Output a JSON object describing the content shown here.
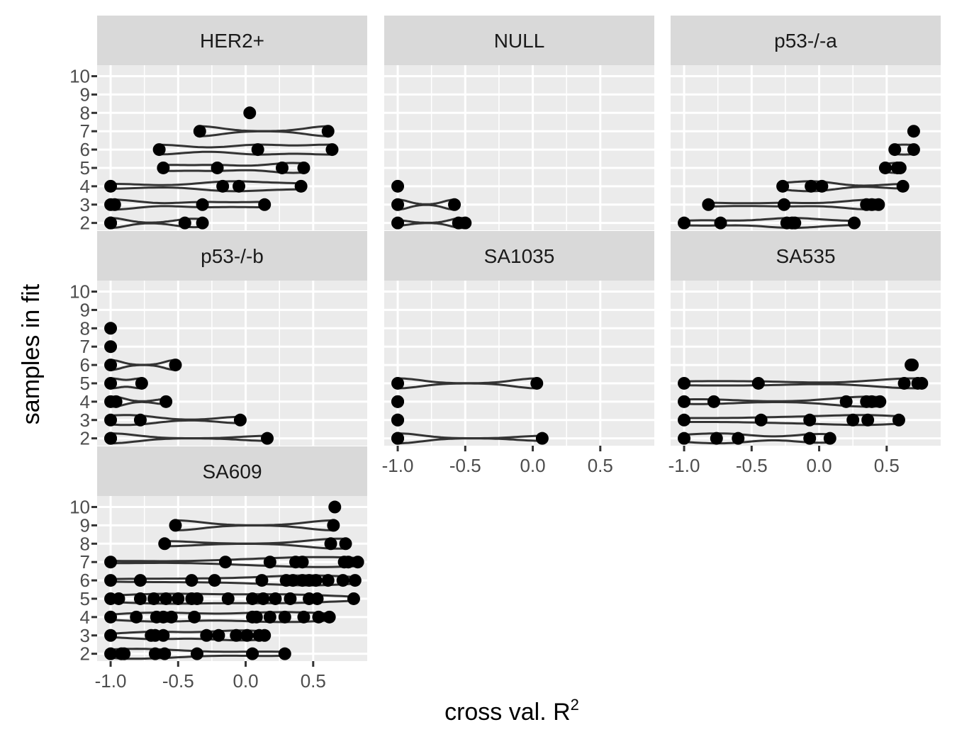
{
  "chart_data": {
    "type": "violin-scatter",
    "xlabel": "cross val. R",
    "xlabel_superscript": "2",
    "ylabel": "samples in fit",
    "xlim": [
      -1.1,
      0.9
    ],
    "ylim": [
      1.6,
      10.6
    ],
    "x_ticks": [
      -1.0,
      -0.5,
      0.0,
      0.5
    ],
    "x_tick_labels": [
      "-1.0",
      "-0.5",
      "0.0",
      "0.5"
    ],
    "y_ticks": [
      2,
      3,
      4,
      5,
      6,
      7,
      8,
      9,
      10
    ],
    "y_tick_labels": [
      "2",
      "3",
      "4",
      "5",
      "6",
      "7",
      "8",
      "9",
      "10"
    ],
    "colors": {
      "panel": "#ebebeb",
      "strip": "#d9d9d9",
      "grid": "#ffffff",
      "point": "#000000",
      "violin": "#333333"
    },
    "panels": [
      {
        "name": "HER2+",
        "groups": [
          {
            "n": 2,
            "x": [
              -1.0,
              -1.0,
              -0.45,
              -0.32
            ]
          },
          {
            "n": 3,
            "x": [
              -1.0,
              -0.97,
              -0.32,
              0.14
            ]
          },
          {
            "n": 4,
            "x": [
              -1.0,
              -0.17,
              -0.05,
              0.41
            ]
          },
          {
            "n": 5,
            "x": [
              -0.61,
              -0.21,
              0.27,
              0.43
            ]
          },
          {
            "n": 6,
            "x": [
              -0.64,
              0.09,
              0.64
            ]
          },
          {
            "n": 7,
            "x": [
              -0.34,
              0.61
            ]
          },
          {
            "n": 8,
            "x": [
              0.03
            ]
          }
        ]
      },
      {
        "name": "NULL",
        "groups": [
          {
            "n": 2,
            "x": [
              -1.0,
              -0.55,
              -0.5
            ]
          },
          {
            "n": 3,
            "x": [
              -1.0,
              -0.58
            ]
          },
          {
            "n": 4,
            "x": [
              -1.0
            ]
          }
        ]
      },
      {
        "name": "p53-/-a",
        "groups": [
          {
            "n": 2,
            "x": [
              -1.0,
              -0.73,
              -0.24,
              -0.2,
              -0.18,
              0.26
            ]
          },
          {
            "n": 3,
            "x": [
              -0.82,
              -0.26,
              0.35,
              0.39,
              0.44
            ]
          },
          {
            "n": 4,
            "x": [
              -0.27,
              -0.06,
              0.02,
              0.62
            ]
          },
          {
            "n": 5,
            "x": [
              0.49,
              0.58,
              0.6
            ]
          },
          {
            "n": 6,
            "x": [
              0.56,
              0.7
            ]
          },
          {
            "n": 7,
            "x": [
              0.7
            ]
          }
        ]
      },
      {
        "name": "p53-/-b",
        "groups": [
          {
            "n": 2,
            "x": [
              -1.0,
              -1.0,
              0.16
            ]
          },
          {
            "n": 3,
            "x": [
              -1.0,
              -0.78,
              -0.04
            ]
          },
          {
            "n": 4,
            "x": [
              -1.0,
              -0.96,
              -0.59
            ]
          },
          {
            "n": 5,
            "x": [
              -1.0,
              -0.77
            ]
          },
          {
            "n": 6,
            "x": [
              -1.0,
              -0.52
            ]
          },
          {
            "n": 7,
            "x": [
              -1.0
            ]
          },
          {
            "n": 8,
            "x": [
              -1.0
            ]
          }
        ]
      },
      {
        "name": "SA1035",
        "groups": [
          {
            "n": 2,
            "x": [
              -1.0,
              -1.0,
              0.07
            ]
          },
          {
            "n": 3,
            "x": [
              -1.0,
              -1.0
            ]
          },
          {
            "n": 4,
            "x": [
              -1.0,
              -1.0
            ]
          },
          {
            "n": 5,
            "x": [
              -1.0,
              0.03
            ]
          }
        ]
      },
      {
        "name": "SA535",
        "groups": [
          {
            "n": 2,
            "x": [
              -1.0,
              -0.76,
              -0.6,
              -0.07,
              0.08
            ]
          },
          {
            "n": 3,
            "x": [
              -1.0,
              -0.43,
              -0.07,
              0.25,
              0.36,
              0.59
            ]
          },
          {
            "n": 4,
            "x": [
              -1.0,
              -0.78,
              0.2,
              0.35,
              0.39,
              0.45
            ]
          },
          {
            "n": 5,
            "x": [
              -1.0,
              -0.45,
              0.63,
              0.73,
              0.76
            ]
          },
          {
            "n": 6,
            "x": [
              0.68,
              0.69
            ]
          }
        ]
      },
      {
        "name": "SA609",
        "groups": [
          {
            "n": 2,
            "x": [
              -1.0,
              -0.92,
              -0.9,
              -0.67,
              -0.6,
              -0.36,
              0.05,
              0.29
            ]
          },
          {
            "n": 3,
            "x": [
              -1.0,
              -0.7,
              -0.67,
              -0.61,
              -0.29,
              -0.2,
              -0.07,
              0.01,
              0.1,
              0.14
            ]
          },
          {
            "n": 4,
            "x": [
              -1.0,
              -0.81,
              -0.66,
              -0.61,
              -0.55,
              -0.38,
              0.05,
              0.08,
              0.18,
              0.29,
              0.43,
              0.54,
              0.62
            ]
          },
          {
            "n": 5,
            "x": [
              -1.0,
              -0.94,
              -0.78,
              -0.68,
              -0.59,
              -0.5,
              -0.4,
              -0.36,
              -0.13,
              0.05,
              0.13,
              0.22,
              0.33,
              0.47,
              0.53,
              0.8
            ]
          },
          {
            "n": 6,
            "x": [
              -1.0,
              -0.78,
              -0.4,
              -0.23,
              0.12,
              0.3,
              0.35,
              0.42,
              0.47,
              0.52,
              0.61,
              0.72,
              0.81
            ]
          },
          {
            "n": 7,
            "x": [
              -1.0,
              -0.15,
              0.18,
              0.37,
              0.42,
              0.73,
              0.76,
              0.83
            ]
          },
          {
            "n": 8,
            "x": [
              -0.6,
              0.63,
              0.74
            ]
          },
          {
            "n": 9,
            "x": [
              -0.52,
              0.65
            ]
          },
          {
            "n": 10,
            "x": [
              0.66
            ]
          }
        ]
      }
    ]
  }
}
